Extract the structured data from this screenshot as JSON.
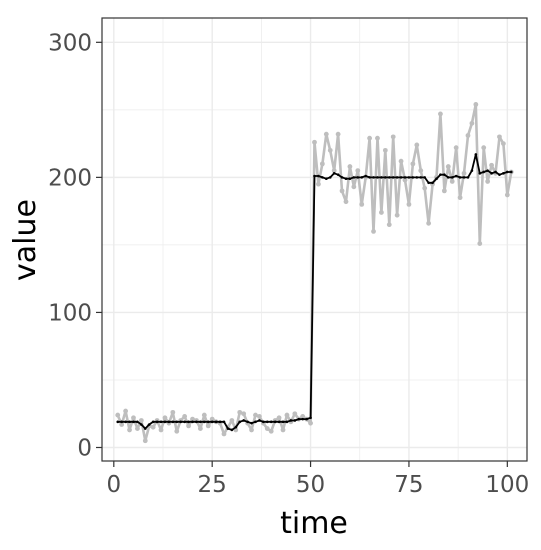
{
  "chart_data": {
    "type": "line",
    "xlabel": "time",
    "ylabel": "value",
    "xlim": [
      -3,
      105
    ],
    "ylim": [
      -10,
      318
    ],
    "x_ticks": [
      0,
      25,
      50,
      75,
      100
    ],
    "x_tick_labels": [
      "0",
      "25",
      "50",
      "75",
      "100"
    ],
    "y_ticks": [
      0,
      100,
      200,
      300
    ],
    "y_tick_labels": [
      "0",
      "100",
      "200",
      "300"
    ],
    "grid": true,
    "legend": "none",
    "colors": {
      "raw": "#bebebe",
      "smooth": "#000000",
      "grid": "#ebebeb",
      "border": "#333333"
    },
    "series": [
      {
        "values": [
          [
            1,
            24
          ],
          [
            2,
            17
          ],
          [
            3,
            27
          ],
          [
            4,
            13
          ],
          [
            5,
            22
          ],
          [
            6,
            14
          ],
          [
            7,
            20
          ],
          [
            8,
            5
          ],
          [
            9,
            16
          ],
          [
            10,
            15
          ],
          [
            11,
            20
          ],
          [
            12,
            13
          ],
          [
            13,
            22
          ],
          [
            14,
            18
          ],
          [
            15,
            26
          ],
          [
            16,
            12
          ],
          [
            17,
            20
          ],
          [
            18,
            23
          ],
          [
            19,
            16
          ],
          [
            20,
            21
          ],
          [
            21,
            20
          ],
          [
            22,
            14
          ],
          [
            23,
            24
          ],
          [
            24,
            16
          ],
          [
            25,
            21
          ],
          [
            26,
            19
          ],
          [
            27,
            18
          ],
          [
            28,
            10
          ],
          [
            29,
            15
          ],
          [
            30,
            20
          ],
          [
            31,
            13
          ],
          [
            32,
            26
          ],
          [
            33,
            25
          ],
          [
            34,
            18
          ],
          [
            35,
            13
          ],
          [
            36,
            24
          ],
          [
            37,
            23
          ],
          [
            38,
            18
          ],
          [
            39,
            14
          ],
          [
            40,
            12
          ],
          [
            41,
            20
          ],
          [
            42,
            22
          ],
          [
            43,
            13
          ],
          [
            44,
            24
          ],
          [
            45,
            19
          ],
          [
            46,
            25
          ],
          [
            47,
            21
          ],
          [
            48,
            23
          ],
          [
            49,
            21
          ],
          [
            50,
            18
          ],
          [
            51,
            226
          ],
          [
            52,
            195
          ],
          [
            53,
            210
          ],
          [
            54,
            232
          ],
          [
            55,
            220
          ],
          [
            56,
            205
          ],
          [
            57,
            232
          ],
          [
            58,
            190
          ],
          [
            59,
            182
          ],
          [
            60,
            208
          ],
          [
            61,
            193
          ],
          [
            62,
            205
          ],
          [
            63,
            180
          ],
          [
            64,
            200
          ],
          [
            65,
            229
          ],
          [
            66,
            160
          ],
          [
            67,
            229
          ],
          [
            68,
            174
          ],
          [
            69,
            220
          ],
          [
            70,
            165
          ],
          [
            71,
            230
          ],
          [
            72,
            172
          ],
          [
            73,
            212
          ],
          [
            74,
            198
          ],
          [
            75,
            180
          ],
          [
            76,
            210
          ],
          [
            77,
            224
          ],
          [
            78,
            205
          ],
          [
            79,
            192
          ],
          [
            80,
            166
          ],
          [
            81,
            195
          ],
          [
            82,
            200
          ],
          [
            83,
            247
          ],
          [
            84,
            190
          ],
          [
            85,
            208
          ],
          [
            86,
            197
          ],
          [
            87,
            222
          ],
          [
            88,
            185
          ],
          [
            89,
            203
          ],
          [
            90,
            231
          ],
          [
            91,
            240
          ],
          [
            92,
            254
          ],
          [
            93,
            151
          ],
          [
            94,
            222
          ],
          [
            95,
            197
          ],
          [
            96,
            209
          ],
          [
            97,
            203
          ],
          [
            98,
            230
          ],
          [
            99,
            225
          ],
          [
            100,
            187
          ],
          [
            101,
            204
          ]
        ]
      },
      {
        "values": [
          [
            1,
            19
          ],
          [
            2,
            19
          ],
          [
            3,
            19
          ],
          [
            4,
            19
          ],
          [
            5,
            19
          ],
          [
            6,
            19
          ],
          [
            7,
            17
          ],
          [
            8,
            14
          ],
          [
            9,
            17
          ],
          [
            10,
            19
          ],
          [
            11,
            19
          ],
          [
            12,
            19
          ],
          [
            13,
            19
          ],
          [
            14,
            19
          ],
          [
            15,
            19
          ],
          [
            16,
            19
          ],
          [
            17,
            19
          ],
          [
            18,
            19
          ],
          [
            19,
            19
          ],
          [
            20,
            19
          ],
          [
            21,
            19
          ],
          [
            22,
            19
          ],
          [
            23,
            19
          ],
          [
            24,
            19
          ],
          [
            25,
            19
          ],
          [
            26,
            19
          ],
          [
            27,
            19
          ],
          [
            28,
            19
          ],
          [
            29,
            14
          ],
          [
            30,
            13
          ],
          [
            31,
            15
          ],
          [
            32,
            19
          ],
          [
            33,
            20
          ],
          [
            34,
            19
          ],
          [
            35,
            18
          ],
          [
            36,
            19
          ],
          [
            37,
            20
          ],
          [
            38,
            19
          ],
          [
            39,
            19
          ],
          [
            40,
            19
          ],
          [
            41,
            19
          ],
          [
            42,
            19
          ],
          [
            43,
            19
          ],
          [
            44,
            19
          ],
          [
            45,
            20
          ],
          [
            46,
            20
          ],
          [
            47,
            21
          ],
          [
            48,
            21
          ],
          [
            49,
            21
          ],
          [
            50,
            22
          ],
          [
            51,
            201
          ],
          [
            52,
            201
          ],
          [
            53,
            200
          ],
          [
            54,
            199
          ],
          [
            55,
            200
          ],
          [
            56,
            203
          ],
          [
            57,
            202
          ],
          [
            58,
            200
          ],
          [
            59,
            199
          ],
          [
            60,
            199
          ],
          [
            61,
            200
          ],
          [
            62,
            200
          ],
          [
            63,
            200
          ],
          [
            64,
            201
          ],
          [
            65,
            200
          ],
          [
            66,
            200
          ],
          [
            67,
            200
          ],
          [
            68,
            200
          ],
          [
            69,
            200
          ],
          [
            70,
            200
          ],
          [
            71,
            200
          ],
          [
            72,
            200
          ],
          [
            73,
            200
          ],
          [
            74,
            200
          ],
          [
            75,
            200
          ],
          [
            76,
            200
          ],
          [
            77,
            200
          ],
          [
            78,
            200
          ],
          [
            79,
            200
          ],
          [
            80,
            196
          ],
          [
            81,
            196
          ],
          [
            82,
            199
          ],
          [
            83,
            202
          ],
          [
            84,
            202
          ],
          [
            85,
            200
          ],
          [
            86,
            200
          ],
          [
            87,
            201
          ],
          [
            88,
            200
          ],
          [
            89,
            200
          ],
          [
            90,
            200
          ],
          [
            91,
            205
          ],
          [
            92,
            217
          ],
          [
            93,
            203
          ],
          [
            94,
            204
          ],
          [
            95,
            205
          ],
          [
            96,
            203
          ],
          [
            97,
            204
          ],
          [
            98,
            202
          ],
          [
            99,
            203
          ],
          [
            100,
            204
          ],
          [
            101,
            204
          ]
        ]
      }
    ]
  }
}
